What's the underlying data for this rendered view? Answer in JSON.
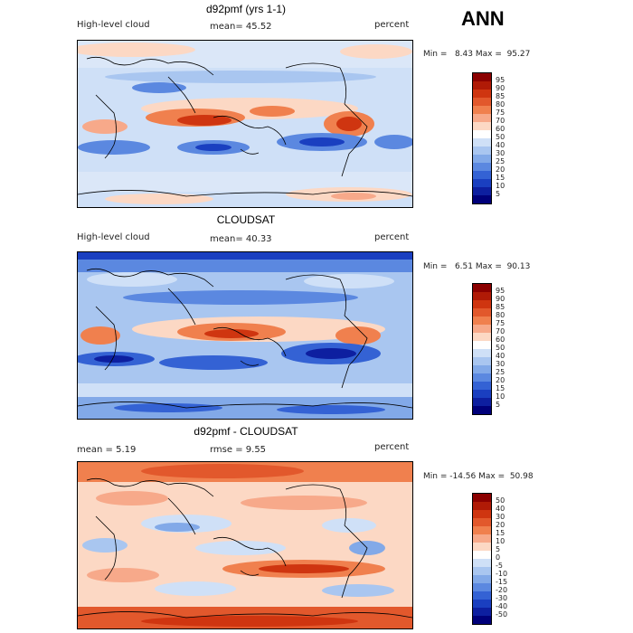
{
  "season": "ANN",
  "panels": [
    {
      "title": "d92pmf (yrs 1-1)",
      "left_label": "High-level cloud",
      "mid_label": "mean=  45.52",
      "right_label": "percent",
      "min_max": "Min =   8.43 Max =  95.27",
      "colorbar_labels": [
        "95",
        "90",
        "85",
        "80",
        "75",
        "70",
        "60",
        "50",
        "40",
        "30",
        "25",
        "20",
        "15",
        "10",
        "5"
      ],
      "colors": [
        "#8b0000",
        "#b01a06",
        "#cf3510",
        "#e2582c",
        "#f0804e",
        "#f7a98a",
        "#fcd8c4",
        "#ffffff",
        "#cfe0f7",
        "#a9c6f0",
        "#82a9e8",
        "#5b88e0",
        "#3462d4",
        "#1a3fc0",
        "#0d1fa0",
        "#00007a"
      ]
    },
    {
      "title": "CLOUDSAT",
      "left_label": "High-level cloud",
      "mid_label": "mean=  40.33",
      "right_label": "percent",
      "min_max": "Min =   6.51 Max =  90.13",
      "colorbar_labels": [
        "95",
        "90",
        "85",
        "80",
        "75",
        "70",
        "60",
        "50",
        "40",
        "30",
        "25",
        "20",
        "15",
        "10",
        "5"
      ],
      "colors": [
        "#8b0000",
        "#b01a06",
        "#cf3510",
        "#e2582c",
        "#f0804e",
        "#f7a98a",
        "#fcd8c4",
        "#ffffff",
        "#cfe0f7",
        "#a9c6f0",
        "#82a9e8",
        "#5b88e0",
        "#3462d4",
        "#1a3fc0",
        "#0d1fa0",
        "#00007a"
      ]
    },
    {
      "title": "d92pmf - CLOUDSAT",
      "left_label": "mean =   5.19",
      "mid_label": "rmse =   9.55",
      "right_label": "percent",
      "min_max": "Min = -14.56 Max =  50.98",
      "colorbar_labels": [
        "50",
        "40",
        "30",
        "20",
        "15",
        "10",
        "5",
        "0",
        "-5",
        "-10",
        "-15",
        "-20",
        "-30",
        "-40",
        "-50"
      ],
      "colors": [
        "#8b0000",
        "#b01a06",
        "#cf3510",
        "#e2582c",
        "#f0804e",
        "#f7a98a",
        "#fcd8c4",
        "#ffffff",
        "#cfe0f7",
        "#a9c6f0",
        "#82a9e8",
        "#5b88e0",
        "#3462d4",
        "#1a3fc0",
        "#0d1fa0",
        "#00007a"
      ]
    }
  ]
}
